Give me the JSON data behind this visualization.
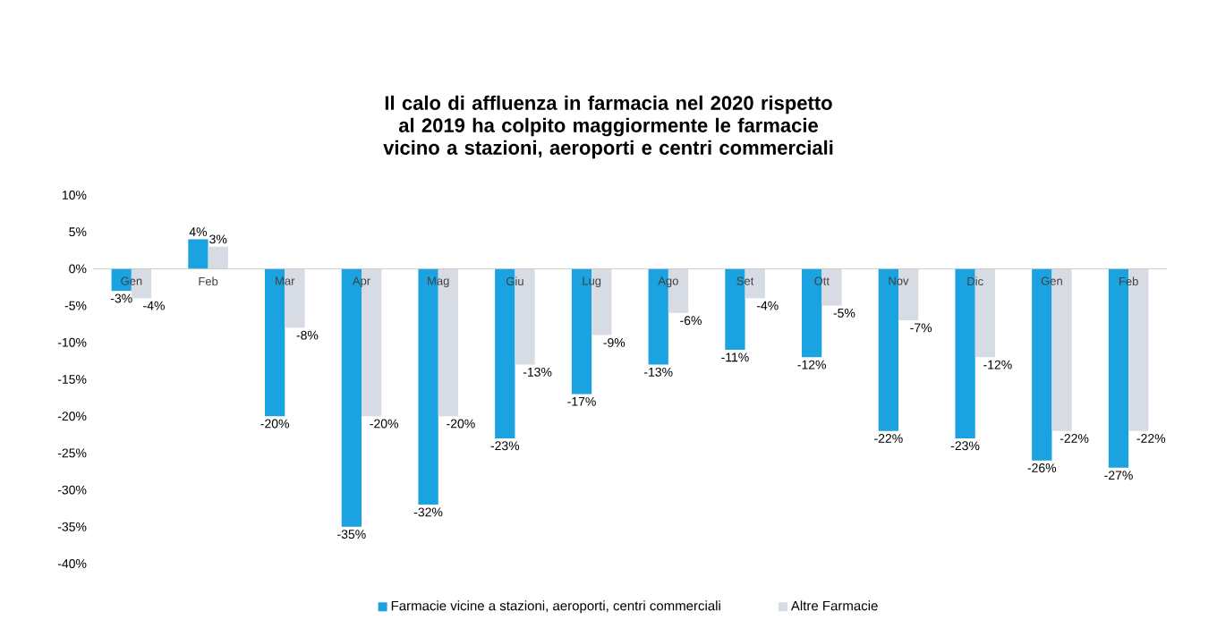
{
  "chart_data": {
    "type": "bar",
    "title": "Il calo di affluenza in farmacia nel 2020 rispetto al 2019 ha colpito maggiormente le farmacie vicino a stazioni, aeroporti e centri commerciali",
    "categories": [
      "Gen",
      "Feb",
      "Mar",
      "Apr",
      "Mag",
      "Giu",
      "Lug",
      "Ago",
      "Set",
      "Ott",
      "Nov",
      "Dic",
      "Gen",
      "Feb"
    ],
    "series": [
      {
        "name": "Farmacie vicine a stazioni, aeroporti, centri commerciali",
        "color": "#1aa3e0",
        "values": [
          -3,
          4,
          -20,
          -35,
          -32,
          -23,
          -17,
          -13,
          -11,
          -12,
          -22,
          -23,
          -26,
          -27
        ],
        "value_labels": [
          "-3%",
          "4%",
          "-20%",
          "-35%",
          "-32%",
          "-23%",
          "-17%",
          "-13%",
          "-11%",
          "-12%",
          "-22%",
          "-23%",
          "-26%",
          "-27%"
        ]
      },
      {
        "name": "Altre Farmacie",
        "color": "#d7dbe3",
        "values": [
          -4,
          3,
          -8,
          -20,
          -20,
          -13,
          -9,
          -6,
          -4,
          -5,
          -7,
          -12,
          -22,
          -22
        ],
        "value_labels": [
          "-4%",
          "3%",
          "-8%",
          "-20%",
          "-20%",
          "-13%",
          "-9%",
          "-6%",
          "-4%",
          "-5%",
          "-7%",
          "-12%",
          "-22%",
          "-22%"
        ]
      }
    ],
    "ylim": [
      -40,
      10
    ],
    "yticks": [
      {
        "value": 10,
        "label": "10%"
      },
      {
        "value": 5,
        "label": "5%"
      },
      {
        "value": 0,
        "label": "0%"
      },
      {
        "value": -5,
        "label": "-5%"
      },
      {
        "value": -10,
        "label": "-10%"
      },
      {
        "value": -15,
        "label": "-15%"
      },
      {
        "value": -20,
        "label": "-20%"
      },
      {
        "value": -25,
        "label": "-25%"
      },
      {
        "value": -30,
        "label": "-30%"
      },
      {
        "value": -35,
        "label": "-35%"
      },
      {
        "value": -40,
        "label": "-40%"
      }
    ],
    "legend": "bottom"
  }
}
